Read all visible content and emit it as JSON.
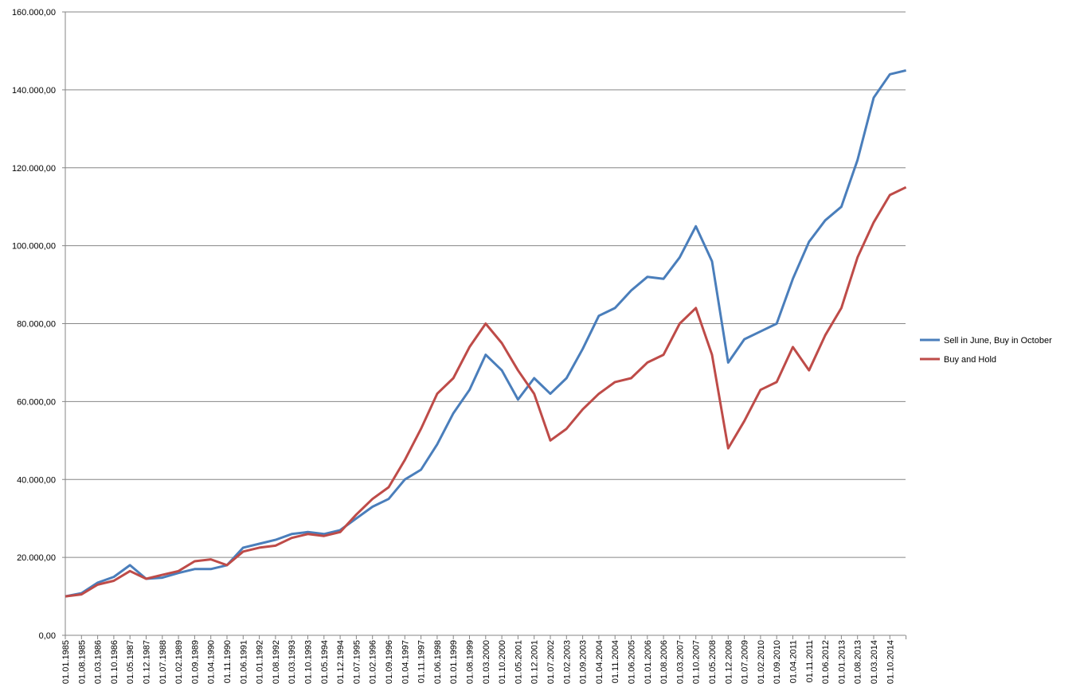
{
  "chart_data": {
    "type": "line",
    "categories": [
      "01.01.1985",
      "01.08.1985",
      "01.03.1986",
      "01.10.1986",
      "01.05.1987",
      "01.12.1987",
      "01.07.1988",
      "01.02.1989",
      "01.09.1989",
      "01.04.1990",
      "01.11.1990",
      "01.06.1991",
      "01.01.1992",
      "01.08.1992",
      "01.03.1993",
      "01.10.1993",
      "01.05.1994",
      "01.12.1994",
      "01.07.1995",
      "01.02.1996",
      "01.09.1996",
      "01.04.1997",
      "01.11.1997",
      "01.06.1998",
      "01.01.1999",
      "01.08.1999",
      "01.03.2000",
      "01.10.2000",
      "01.05.2001",
      "01.12.2001",
      "01.07.2002",
      "01.02.2003",
      "01.09.2003",
      "01.04.2004",
      "01.11.2004",
      "01.06.2005",
      "01.01.2006",
      "01.08.2006",
      "01.03.2007",
      "01.10.2007",
      "01.05.2008",
      "01.12.2008",
      "01.07.2009",
      "01.02.2010",
      "01.09.2010",
      "01.04.2011",
      "01.11.2011",
      "01.06.2012",
      "01.01.2013",
      "01.08.2013",
      "01.03.2014",
      "01.10.2014",
      null
    ],
    "series": [
      {
        "name": "Sell in June, Buy in October",
        "color": "#4a7ebb",
        "values": [
          10000,
          10800,
          13500,
          15000,
          18000,
          14500,
          14800,
          16000,
          17000,
          17000,
          18000,
          22500,
          23500,
          24500,
          26000,
          26500,
          26000,
          27000,
          30000,
          33000,
          35000,
          40000,
          42500,
          49000,
          57000,
          63000,
          72000,
          68000,
          60500,
          66000,
          62000,
          66000,
          73500,
          82000,
          84000,
          88500,
          92000,
          91500,
          97000,
          105000,
          96000,
          70000,
          76000,
          78000,
          80000,
          91500,
          101000,
          106500,
          110000,
          122000,
          138000,
          144000,
          145000
        ]
      },
      {
        "name": "Buy and Hold",
        "color": "#be4b48",
        "values": [
          10000,
          10500,
          13000,
          14000,
          16500,
          14500,
          15500,
          16500,
          19000,
          19500,
          18000,
          21500,
          22500,
          23000,
          25000,
          26000,
          25500,
          26500,
          31000,
          35000,
          38000,
          45000,
          53000,
          62000,
          66000,
          74000,
          80000,
          75000,
          68000,
          62000,
          50000,
          53000,
          58000,
          62000,
          65000,
          66000,
          70000,
          72000,
          80000,
          84000,
          72000,
          48000,
          55000,
          63000,
          65000,
          74000,
          68000,
          77000,
          84000,
          97000,
          106000,
          113000,
          115000
        ]
      }
    ],
    "ylim": [
      0,
      160000
    ],
    "yticks": [
      {
        "value": 0,
        "label": "0,00"
      },
      {
        "value": 20000,
        "label": "20.000,00"
      },
      {
        "value": 40000,
        "label": "40.000,00"
      },
      {
        "value": 60000,
        "label": "60.000,00"
      },
      {
        "value": 80000,
        "label": "80.000,00"
      },
      {
        "value": 100000,
        "label": "100.000,00"
      },
      {
        "value": 120000,
        "label": "120.000,00"
      },
      {
        "value": 140000,
        "label": "140.000,00"
      },
      {
        "value": 160000,
        "label": "160.000,00"
      }
    ],
    "grid": true,
    "legend": "right"
  }
}
